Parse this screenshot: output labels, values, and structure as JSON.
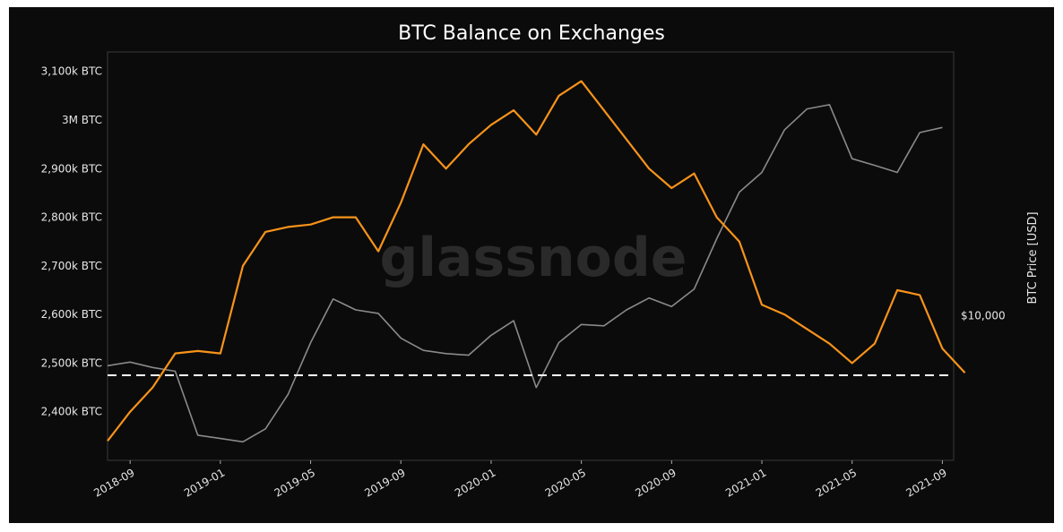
{
  "chart_data": {
    "type": "line",
    "title": "BTC Balance on Exchanges",
    "watermark": "glassnode",
    "ylabel_right": "BTC Price [USD]",
    "y_ticks_left": [
      "3,100k BTC",
      "3M BTC",
      "2,900k BTC",
      "2,800k BTC",
      "2,700k BTC",
      "2,600k BTC",
      "2,500k BTC",
      "2,400k BTC"
    ],
    "y_tick_values_left": [
      3100,
      3000,
      2900,
      2800,
      2700,
      2600,
      2500,
      2400
    ],
    "y_ticks_right": [
      "$10,000"
    ],
    "x_ticks": [
      "2018-09",
      "2019-01",
      "2019-05",
      "2019-09",
      "2020-01",
      "2020-05",
      "2020-09",
      "2021-01",
      "2021-05",
      "2021-09"
    ],
    "xlim": [
      "2018-08",
      "2021-09"
    ],
    "ylim_left": [
      2300,
      3140
    ],
    "reference_line": {
      "value": 2475,
      "style": "dashed",
      "color": "#ffffff"
    },
    "series": [
      {
        "axis": "left",
        "color": "#f7931a",
        "points": [
          [
            "2018-08",
            2340
          ],
          [
            "2018-09",
            2400
          ],
          [
            "2018-10",
            2450
          ],
          [
            "2018-11",
            2520
          ],
          [
            "2018-12",
            2525
          ],
          [
            "2019-01",
            2520
          ],
          [
            "2019-02",
            2700
          ],
          [
            "2019-03",
            2770
          ],
          [
            "2019-04",
            2780
          ],
          [
            "2019-05",
            2785
          ],
          [
            "2019-06",
            2800
          ],
          [
            "2019-07",
            2800
          ],
          [
            "2019-08",
            2730
          ],
          [
            "2019-09",
            2830
          ],
          [
            "2019-10",
            2950
          ],
          [
            "2019-11",
            2900
          ],
          [
            "2019-12",
            2950
          ],
          [
            "2020-01",
            2990
          ],
          [
            "2020-02",
            3020
          ],
          [
            "2020-03",
            2970
          ],
          [
            "2020-04",
            3050
          ],
          [
            "2020-05",
            3080
          ],
          [
            "2020-06",
            3020
          ],
          [
            "2020-07",
            2960
          ],
          [
            "2020-08",
            2900
          ],
          [
            "2020-09",
            2860
          ],
          [
            "2020-10",
            2890
          ],
          [
            "2020-11",
            2800
          ],
          [
            "2020-12",
            2750
          ],
          [
            "2021-01",
            2620
          ],
          [
            "2021-02",
            2600
          ],
          [
            "2021-03",
            2570
          ],
          [
            "2021-04",
            2540
          ],
          [
            "2021-05",
            2500
          ],
          [
            "2021-06",
            2540
          ],
          [
            "2021-07",
            2650
          ],
          [
            "2021-08",
            2640
          ],
          [
            "2021-09",
            2530
          ],
          [
            "2021-10",
            2480
          ]
        ]
      },
      {
        "axis": "right",
        "color": "#8a8a8a",
        "points": [
          [
            "2018-08",
            6600
          ],
          [
            "2018-09",
            6800
          ],
          [
            "2018-10",
            6500
          ],
          [
            "2018-11",
            6300
          ],
          [
            "2018-12",
            3700
          ],
          [
            "2019-01",
            3600
          ],
          [
            "2019-02",
            3500
          ],
          [
            "2019-03",
            3900
          ],
          [
            "2019-04",
            5200
          ],
          [
            "2019-05",
            8000
          ],
          [
            "2019-06",
            11500
          ],
          [
            "2019-07",
            10500
          ],
          [
            "2019-08",
            10200
          ],
          [
            "2019-09",
            8300
          ],
          [
            "2019-10",
            7500
          ],
          [
            "2019-11",
            7300
          ],
          [
            "2019-12",
            7200
          ],
          [
            "2020-01",
            8500
          ],
          [
            "2020-02",
            9600
          ],
          [
            "2020-03",
            5500
          ],
          [
            "2020-04",
            8000
          ],
          [
            "2020-05",
            9300
          ],
          [
            "2020-06",
            9200
          ],
          [
            "2020-07",
            10500
          ],
          [
            "2020-08",
            11600
          ],
          [
            "2020-09",
            10800
          ],
          [
            "2020-10",
            12500
          ],
          [
            "2020-11",
            19000
          ],
          [
            "2020-12",
            28000
          ],
          [
            "2021-01",
            33000
          ],
          [
            "2021-02",
            47000
          ],
          [
            "2021-03",
            56000
          ],
          [
            "2021-04",
            58000
          ],
          [
            "2021-05",
            37000
          ],
          [
            "2021-06",
            35000
          ],
          [
            "2021-07",
            33000
          ],
          [
            "2021-08",
            46000
          ],
          [
            "2021-09",
            48000
          ]
        ]
      }
    ]
  }
}
